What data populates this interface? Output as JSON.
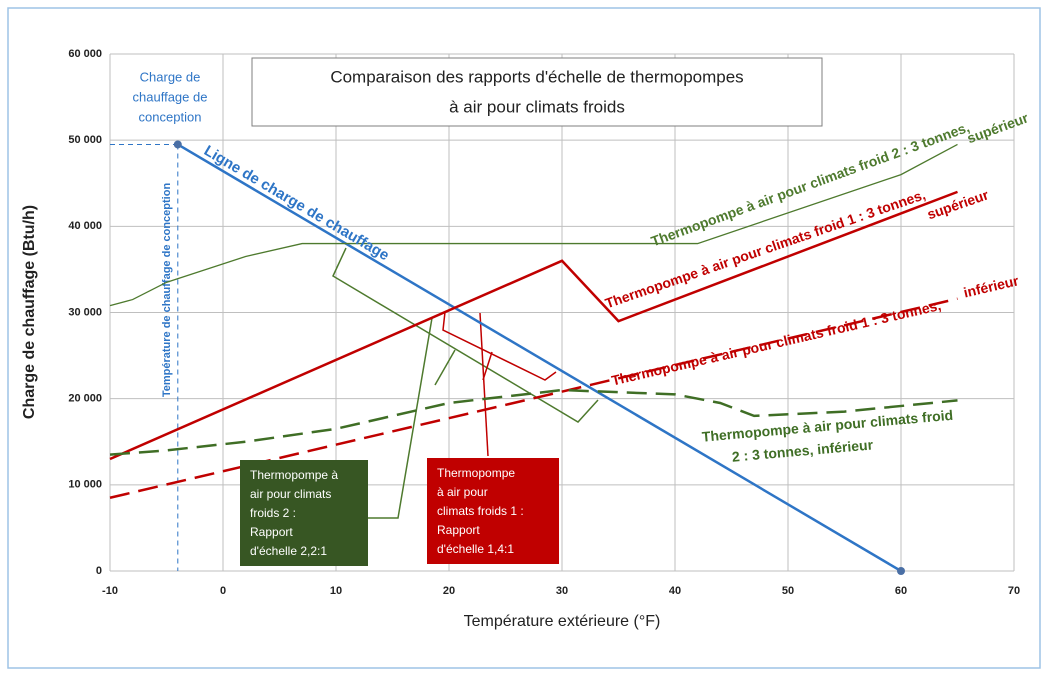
{
  "chart_data": {
    "type": "line",
    "title": [
      "Comparaison des rapports d'échelle de thermopompes",
      "à air pour climats froids"
    ],
    "x_label": "Température extérieure (°F)",
    "y_label": "Charge de chauffage (Btu/h)",
    "xlim": [
      -10,
      70
    ],
    "xticks": [
      -10,
      0,
      10,
      20,
      30,
      40,
      50,
      60,
      70
    ],
    "ylim": [
      0,
      60000
    ],
    "yticks": [
      0,
      {
        "value": 10000,
        "label": "10 000"
      },
      {
        "value": 20000,
        "label": "20 000"
      },
      {
        "value": 30000,
        "label": "30 000"
      },
      {
        "value": 40000,
        "label": "40 000"
      },
      {
        "value": 50000,
        "label": "50 000"
      },
      {
        "value": 60000,
        "label": "60 000"
      }
    ],
    "grid": true,
    "series": [
      {
        "name": [
          "Ligne de charge de chauffage"
        ],
        "color": "#2e75c6",
        "dash": false,
        "width": 2.5,
        "x": [
          -4,
          60
        ],
        "values": [
          49500,
          0
        ]
      },
      {
        "name": [
          "Thermopompe à air pour climats froid 2 : 3 tonnes,",
          "supérieur"
        ],
        "color": "#4e7a2e",
        "dash": false,
        "width": 1.3,
        "x": [
          -10,
          -8,
          -5,
          2,
          7,
          42,
          60,
          65
        ],
        "values": [
          30800,
          31500,
          33500,
          36500,
          38000,
          38000,
          46000,
          49500
        ]
      },
      {
        "name": [
          "Thermopompe à air pour climats froid 1 : 3 tonnes,",
          "supérieur"
        ],
        "color": "#c00000",
        "dash": false,
        "width": 2.5,
        "x": [
          -10,
          30,
          35,
          65
        ],
        "values": [
          13000,
          36000,
          29000,
          44000
        ]
      },
      {
        "name": [
          "Thermopompe à air pour climats froid 1 : 3 tonnes,",
          "inférieur"
        ],
        "color": "#c00000",
        "dash": true,
        "width": 2.5,
        "x": [
          -10,
          65
        ],
        "values": [
          8500,
          31600
        ]
      },
      {
        "name": [
          "Thermopompe à air pour climats froid",
          "2 : 3 tonnes, inférieur"
        ],
        "color": "#3f6e25",
        "dash": true,
        "width": 2.5,
        "x": [
          -10,
          -5,
          2,
          10,
          20,
          30,
          40,
          44,
          47,
          55,
          65
        ],
        "values": [
          13500,
          14000,
          15000,
          16500,
          19500,
          21000,
          20500,
          19500,
          18000,
          18500,
          19800
        ]
      }
    ],
    "design_temperature": -4,
    "design_load": 49500,
    "design_load_label": [
      "Charge de",
      "chauffage de",
      "conception"
    ],
    "design_temperature_label": "Température de chauffage de conception",
    "callouts": [
      {
        "lines": [
          "Thermopompe à",
          "air pour climats",
          "froids 2 :",
          "Rapport",
          "d'échelle 2,2:1"
        ],
        "color": "#375623"
      },
      {
        "lines": [
          "Thermopompe",
          "à air pour",
          "climats froids 1 :",
          "Rapport",
          "d'échelle 1,4:1"
        ],
        "color": "#c00000"
      }
    ]
  }
}
